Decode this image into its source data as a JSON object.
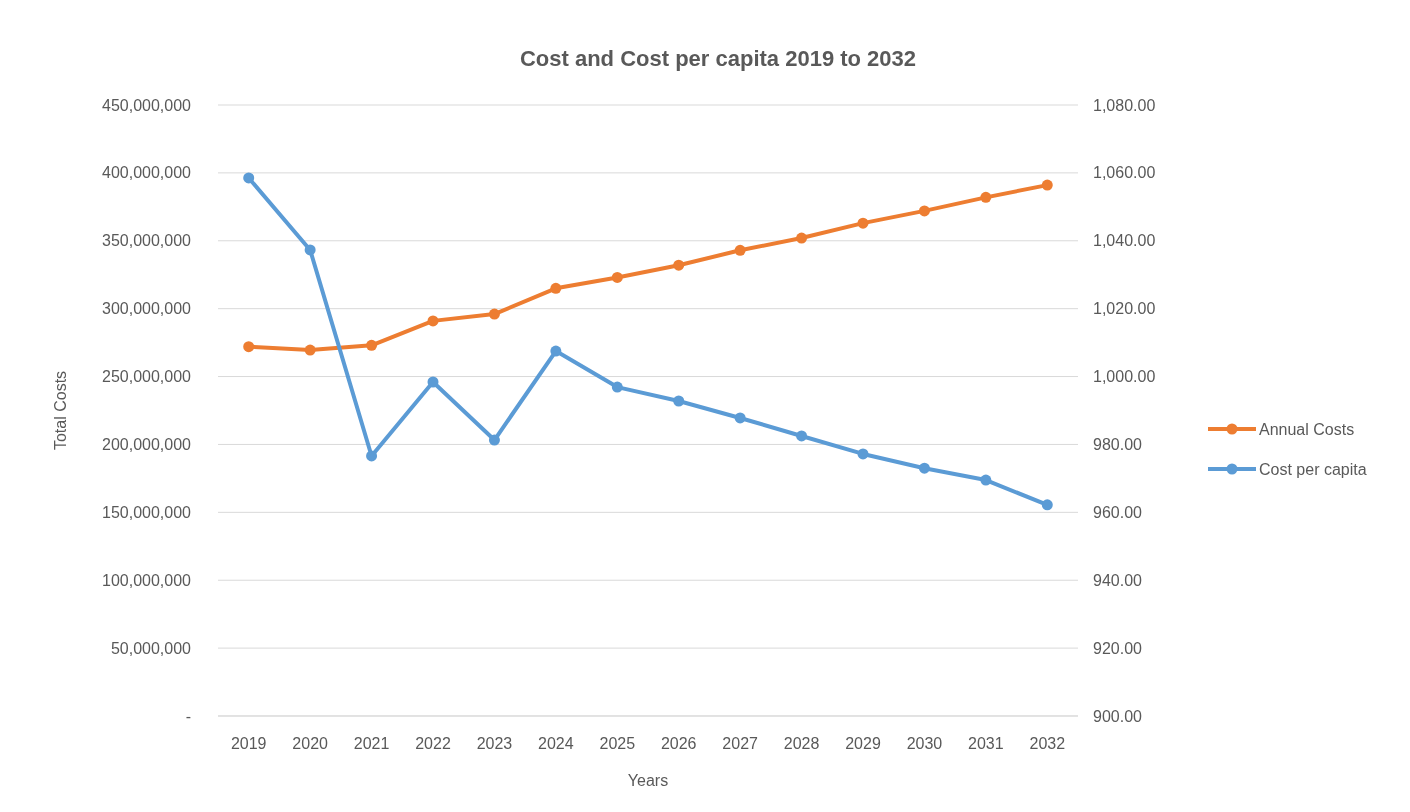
{
  "chart_data": {
    "type": "line",
    "title": "Cost and Cost per capita 2019 to 2032",
    "xlabel": "Years",
    "ylabel": "Total Costs",
    "categories": [
      "2019",
      "2020",
      "2021",
      "2022",
      "2023",
      "2024",
      "2025",
      "2026",
      "2027",
      "2028",
      "2029",
      "2030",
      "2031",
      "2032"
    ],
    "series": [
      {
        "name": "Annual Costs",
        "color": "#ed7d31",
        "values": [
          272000000,
          269500000,
          273000000,
          291000000,
          296000000,
          315000000,
          323000000,
          332000000,
          343000000,
          352000000,
          363000000,
          372000000,
          382000000,
          391000000
        ]
      },
      {
        "name": "Cost per capita",
        "color": "#5b9bd5",
        "axis": "y2",
        "values": [
          1058.5,
          1037.3,
          976.6,
          998.4,
          981.3,
          1007.5,
          996.9,
          992.8,
          987.8,
          982.5,
          977.2,
          973,
          969.5,
          962.2
        ]
      }
    ],
    "ylim": [
      0,
      450000000
    ],
    "yticks": [
      {
        "value": 0,
        "label": "-"
      },
      {
        "value": 50000000,
        "label": "50,000,000"
      },
      {
        "value": 100000000,
        "label": "100,000,000"
      },
      {
        "value": 150000000,
        "label": "150,000,000"
      },
      {
        "value": 200000000,
        "label": "200,000,000"
      },
      {
        "value": 250000000,
        "label": "250,000,000"
      },
      {
        "value": 300000000,
        "label": "300,000,000"
      },
      {
        "value": 350000000,
        "label": "350,000,000"
      },
      {
        "value": 400000000,
        "label": "400,000,000"
      },
      {
        "value": 450000000,
        "label": "450,000,000"
      }
    ],
    "y2lim": [
      900,
      1080
    ],
    "y2ticks": [
      {
        "value": 900,
        "label": "900.00"
      },
      {
        "value": 920,
        "label": "920.00"
      },
      {
        "value": 940,
        "label": "940.00"
      },
      {
        "value": 960,
        "label": "960.00"
      },
      {
        "value": 980,
        "label": "980.00"
      },
      {
        "value": 1000,
        "label": "1,000.00"
      },
      {
        "value": 1020,
        "label": "1,020.00"
      },
      {
        "value": 1040,
        "label": "1,040.00"
      },
      {
        "value": 1060,
        "label": "1,060.00"
      },
      {
        "value": 1080,
        "label": "1,080.00"
      }
    ],
    "grid": "y",
    "legend": "right",
    "marker": "circle",
    "line_style": "solid"
  }
}
